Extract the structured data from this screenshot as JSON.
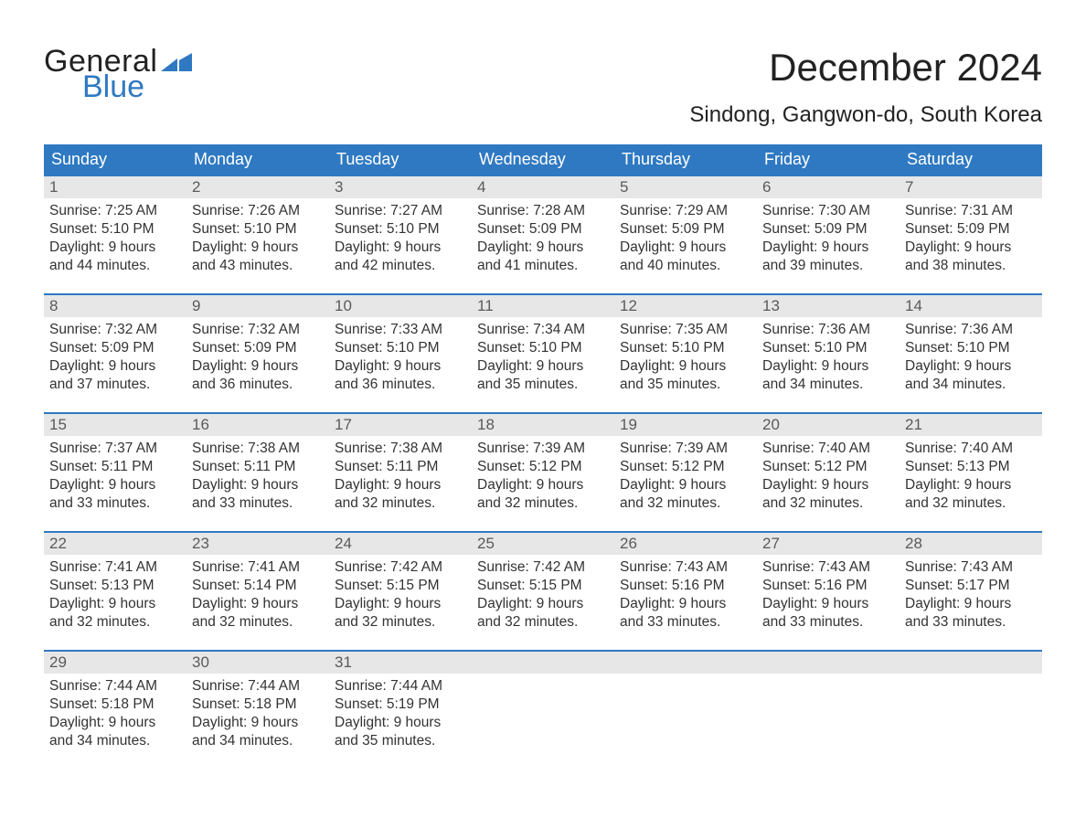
{
  "logo": {
    "word1": "General",
    "word2": "Blue",
    "flag_color": "#2f79c2",
    "text_color_dark": "#222222"
  },
  "title": "December 2024",
  "location": "Sindong, Gangwon-do, South Korea",
  "colors": {
    "header_bg": "#2f79c2",
    "header_text": "#ffffff",
    "row_divider": "#2f79c2",
    "daynum_bg": "#e7e7e7",
    "daynum_text": "#5a5a5a",
    "body_text": "#333333",
    "page_bg": "#ffffff"
  },
  "typography": {
    "title_fontsize": 42,
    "location_fontsize": 24,
    "dayheader_fontsize": 18,
    "daynum_fontsize": 17,
    "body_fontsize": 15.5,
    "logo_fontsize": 34
  },
  "day_headers": [
    "Sunday",
    "Monday",
    "Tuesday",
    "Wednesday",
    "Thursday",
    "Friday",
    "Saturday"
  ],
  "weeks": [
    [
      {
        "n": "1",
        "sunrise": "Sunrise: 7:25 AM",
        "sunset": "Sunset: 5:10 PM",
        "d1": "Daylight: 9 hours",
        "d2": "and 44 minutes."
      },
      {
        "n": "2",
        "sunrise": "Sunrise: 7:26 AM",
        "sunset": "Sunset: 5:10 PM",
        "d1": "Daylight: 9 hours",
        "d2": "and 43 minutes."
      },
      {
        "n": "3",
        "sunrise": "Sunrise: 7:27 AM",
        "sunset": "Sunset: 5:10 PM",
        "d1": "Daylight: 9 hours",
        "d2": "and 42 minutes."
      },
      {
        "n": "4",
        "sunrise": "Sunrise: 7:28 AM",
        "sunset": "Sunset: 5:09 PM",
        "d1": "Daylight: 9 hours",
        "d2": "and 41 minutes."
      },
      {
        "n": "5",
        "sunrise": "Sunrise: 7:29 AM",
        "sunset": "Sunset: 5:09 PM",
        "d1": "Daylight: 9 hours",
        "d2": "and 40 minutes."
      },
      {
        "n": "6",
        "sunrise": "Sunrise: 7:30 AM",
        "sunset": "Sunset: 5:09 PM",
        "d1": "Daylight: 9 hours",
        "d2": "and 39 minutes."
      },
      {
        "n": "7",
        "sunrise": "Sunrise: 7:31 AM",
        "sunset": "Sunset: 5:09 PM",
        "d1": "Daylight: 9 hours",
        "d2": "and 38 minutes."
      }
    ],
    [
      {
        "n": "8",
        "sunrise": "Sunrise: 7:32 AM",
        "sunset": "Sunset: 5:09 PM",
        "d1": "Daylight: 9 hours",
        "d2": "and 37 minutes."
      },
      {
        "n": "9",
        "sunrise": "Sunrise: 7:32 AM",
        "sunset": "Sunset: 5:09 PM",
        "d1": "Daylight: 9 hours",
        "d2": "and 36 minutes."
      },
      {
        "n": "10",
        "sunrise": "Sunrise: 7:33 AM",
        "sunset": "Sunset: 5:10 PM",
        "d1": "Daylight: 9 hours",
        "d2": "and 36 minutes."
      },
      {
        "n": "11",
        "sunrise": "Sunrise: 7:34 AM",
        "sunset": "Sunset: 5:10 PM",
        "d1": "Daylight: 9 hours",
        "d2": "and 35 minutes."
      },
      {
        "n": "12",
        "sunrise": "Sunrise: 7:35 AM",
        "sunset": "Sunset: 5:10 PM",
        "d1": "Daylight: 9 hours",
        "d2": "and 35 minutes."
      },
      {
        "n": "13",
        "sunrise": "Sunrise: 7:36 AM",
        "sunset": "Sunset: 5:10 PM",
        "d1": "Daylight: 9 hours",
        "d2": "and 34 minutes."
      },
      {
        "n": "14",
        "sunrise": "Sunrise: 7:36 AM",
        "sunset": "Sunset: 5:10 PM",
        "d1": "Daylight: 9 hours",
        "d2": "and 34 minutes."
      }
    ],
    [
      {
        "n": "15",
        "sunrise": "Sunrise: 7:37 AM",
        "sunset": "Sunset: 5:11 PM",
        "d1": "Daylight: 9 hours",
        "d2": "and 33 minutes."
      },
      {
        "n": "16",
        "sunrise": "Sunrise: 7:38 AM",
        "sunset": "Sunset: 5:11 PM",
        "d1": "Daylight: 9 hours",
        "d2": "and 33 minutes."
      },
      {
        "n": "17",
        "sunrise": "Sunrise: 7:38 AM",
        "sunset": "Sunset: 5:11 PM",
        "d1": "Daylight: 9 hours",
        "d2": "and 32 minutes."
      },
      {
        "n": "18",
        "sunrise": "Sunrise: 7:39 AM",
        "sunset": "Sunset: 5:12 PM",
        "d1": "Daylight: 9 hours",
        "d2": "and 32 minutes."
      },
      {
        "n": "19",
        "sunrise": "Sunrise: 7:39 AM",
        "sunset": "Sunset: 5:12 PM",
        "d1": "Daylight: 9 hours",
        "d2": "and 32 minutes."
      },
      {
        "n": "20",
        "sunrise": "Sunrise: 7:40 AM",
        "sunset": "Sunset: 5:12 PM",
        "d1": "Daylight: 9 hours",
        "d2": "and 32 minutes."
      },
      {
        "n": "21",
        "sunrise": "Sunrise: 7:40 AM",
        "sunset": "Sunset: 5:13 PM",
        "d1": "Daylight: 9 hours",
        "d2": "and 32 minutes."
      }
    ],
    [
      {
        "n": "22",
        "sunrise": "Sunrise: 7:41 AM",
        "sunset": "Sunset: 5:13 PM",
        "d1": "Daylight: 9 hours",
        "d2": "and 32 minutes."
      },
      {
        "n": "23",
        "sunrise": "Sunrise: 7:41 AM",
        "sunset": "Sunset: 5:14 PM",
        "d1": "Daylight: 9 hours",
        "d2": "and 32 minutes."
      },
      {
        "n": "24",
        "sunrise": "Sunrise: 7:42 AM",
        "sunset": "Sunset: 5:15 PM",
        "d1": "Daylight: 9 hours",
        "d2": "and 32 minutes."
      },
      {
        "n": "25",
        "sunrise": "Sunrise: 7:42 AM",
        "sunset": "Sunset: 5:15 PM",
        "d1": "Daylight: 9 hours",
        "d2": "and 32 minutes."
      },
      {
        "n": "26",
        "sunrise": "Sunrise: 7:43 AM",
        "sunset": "Sunset: 5:16 PM",
        "d1": "Daylight: 9 hours",
        "d2": "and 33 minutes."
      },
      {
        "n": "27",
        "sunrise": "Sunrise: 7:43 AM",
        "sunset": "Sunset: 5:16 PM",
        "d1": "Daylight: 9 hours",
        "d2": "and 33 minutes."
      },
      {
        "n": "28",
        "sunrise": "Sunrise: 7:43 AM",
        "sunset": "Sunset: 5:17 PM",
        "d1": "Daylight: 9 hours",
        "d2": "and 33 minutes."
      }
    ],
    [
      {
        "n": "29",
        "sunrise": "Sunrise: 7:44 AM",
        "sunset": "Sunset: 5:18 PM",
        "d1": "Daylight: 9 hours",
        "d2": "and 34 minutes."
      },
      {
        "n": "30",
        "sunrise": "Sunrise: 7:44 AM",
        "sunset": "Sunset: 5:18 PM",
        "d1": "Daylight: 9 hours",
        "d2": "and 34 minutes."
      },
      {
        "n": "31",
        "sunrise": "Sunrise: 7:44 AM",
        "sunset": "Sunset: 5:19 PM",
        "d1": "Daylight: 9 hours",
        "d2": "and 35 minutes."
      },
      null,
      null,
      null,
      null
    ]
  ]
}
